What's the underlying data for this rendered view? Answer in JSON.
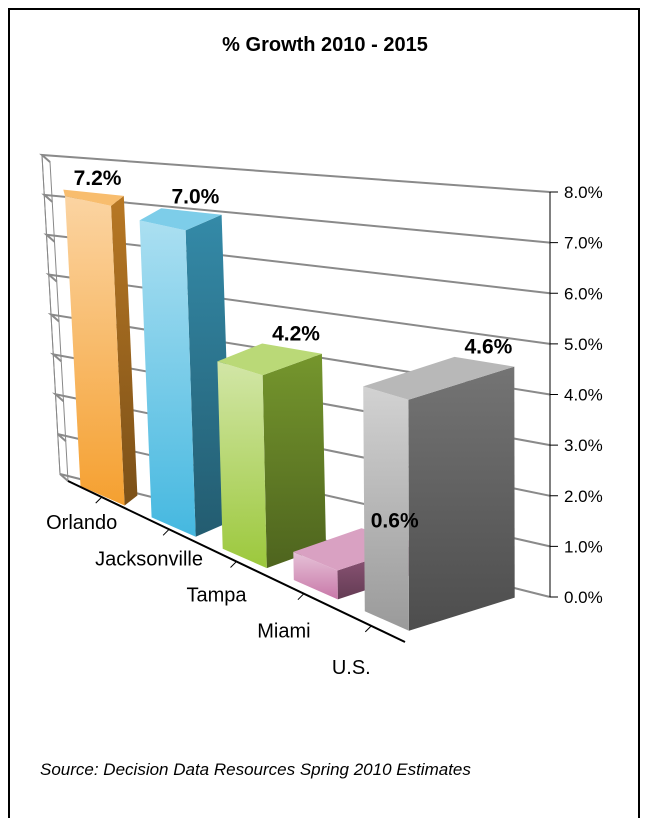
{
  "chart_data": {
    "type": "bar",
    "title": "% Growth 2010 - 2015",
    "categories": [
      "Orlando",
      "Jacksonville",
      "Tampa",
      "Miami",
      "U.S."
    ],
    "values": [
      7.2,
      7.0,
      4.2,
      0.6,
      4.6
    ],
    "data_labels": [
      "7.2%",
      "7.0%",
      "4.2%",
      "0.6%",
      "4.6%"
    ],
    "ylim": [
      0,
      8
    ],
    "yticks": [
      "0.0%",
      "1.0%",
      "2.0%",
      "3.0%",
      "4.0%",
      "5.0%",
      "6.0%",
      "7.0%",
      "8.0%"
    ],
    "grid": true,
    "style": "3d-column",
    "colors": [
      "#f5a030",
      "#45b8e0",
      "#9cc83c",
      "#c878a8",
      "#9a9a9a"
    ]
  },
  "source_note": "Source: Decision Data Resources Spring 2010 Estimates"
}
